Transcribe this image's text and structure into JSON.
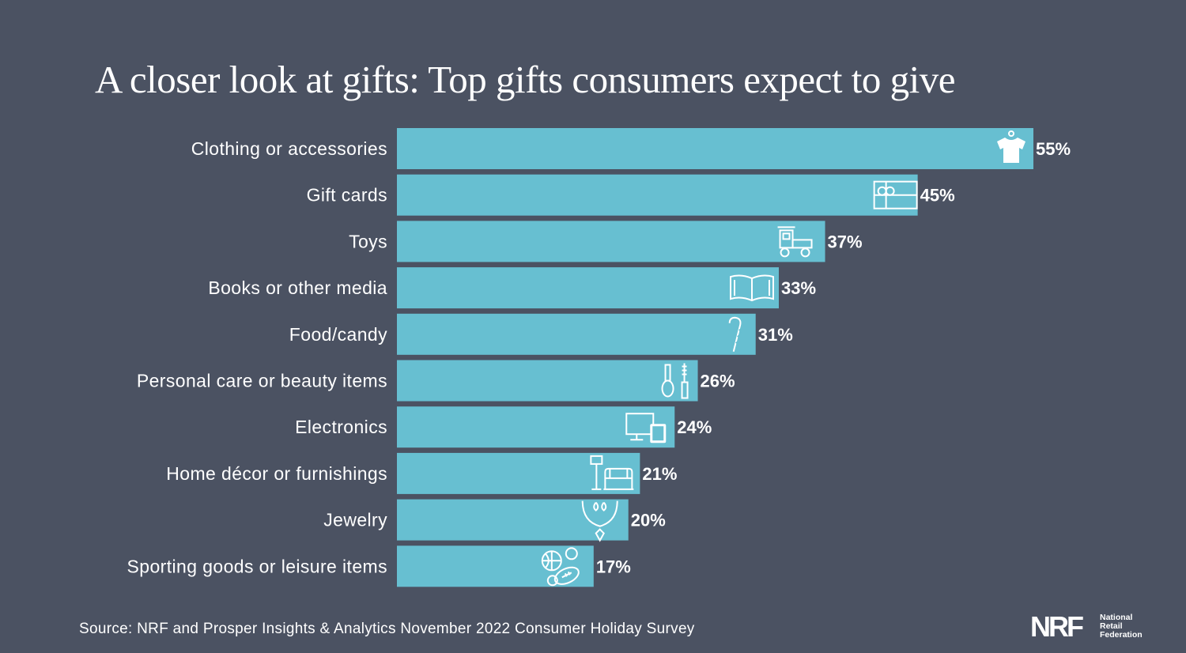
{
  "chart_data": {
    "type": "bar",
    "orientation": "horizontal",
    "title": "A closer look at gifts: Top gifts consumers expect to give",
    "categories": [
      "Clothing or accessories",
      "Gift cards",
      "Toys",
      "Books or other media",
      "Food/candy",
      "Personal care or beauty items",
      "Electronics",
      "Home décor or furnishings",
      "Jewelry",
      "Sporting goods or leisure items"
    ],
    "values": [
      55,
      45,
      37,
      33,
      31,
      26,
      24,
      21,
      20,
      17
    ],
    "value_labels": [
      "55%",
      "45%",
      "37%",
      "33%",
      "31%",
      "26%",
      "24%",
      "21%",
      "20%",
      "17%"
    ],
    "icons": [
      "shirt-icon",
      "gift-card-icon",
      "toy-train-icon",
      "open-book-icon",
      "candy-cane-icon",
      "cosmetics-icon",
      "devices-icon",
      "lamp-armchair-icon",
      "necklace-icon",
      "sports-balls-icon"
    ],
    "bar_color": "#67bfd1",
    "background_color": "#4b5262",
    "xlim": [
      0,
      55
    ],
    "grid": false,
    "legend": "none"
  },
  "source": "Source: NRF and Prosper Insights & Analytics November 2022 Consumer Holiday Survey",
  "logo": {
    "mark": "NRF",
    "lines": [
      "National",
      "Retail",
      "Federation"
    ]
  }
}
